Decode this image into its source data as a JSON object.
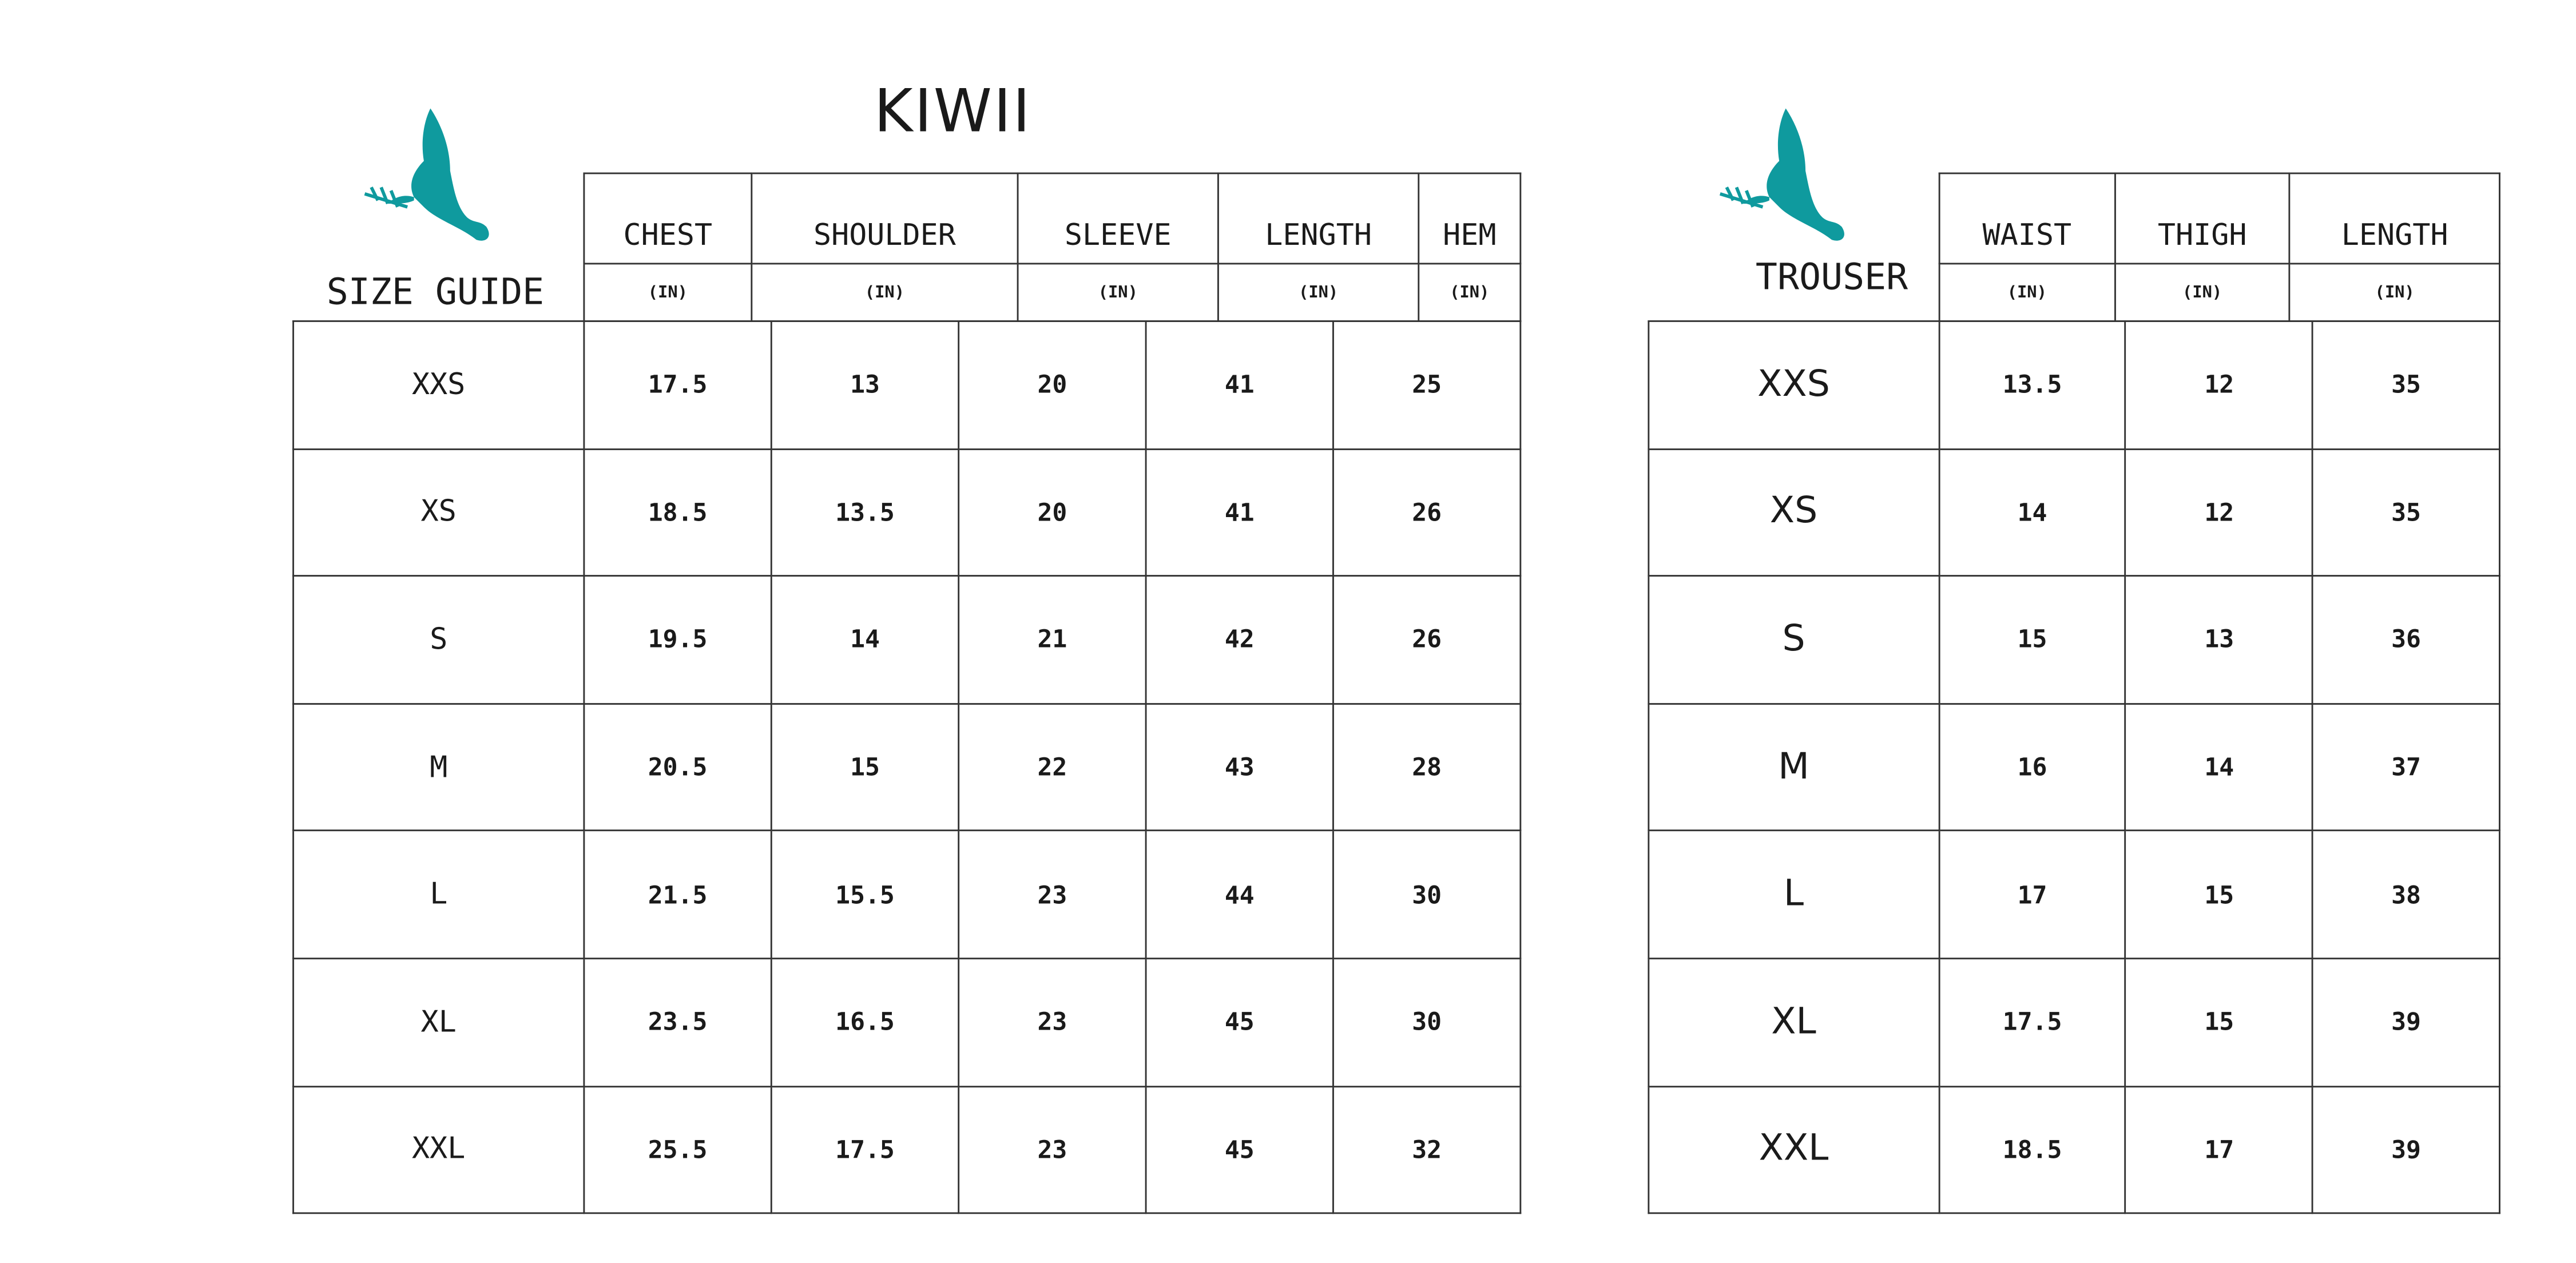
{
  "brand": {
    "title": "KIWII",
    "logo_icon": "dove-with-olive-branch-icon",
    "logo_color": "#0f9a9e"
  },
  "top_table": {
    "label": "SIZE GUIDE",
    "headers": [
      "CHEST",
      "SHOULDER",
      "SLEEVE",
      "LENGTH",
      "HEM"
    ],
    "units": [
      "(IN)",
      "(IN)",
      "(IN)",
      "(IN)",
      "(IN)"
    ],
    "rows": [
      {
        "size": "XXS",
        "values": [
          "17.5",
          "13",
          "20",
          "41",
          "25"
        ]
      },
      {
        "size": "XS",
        "values": [
          "18.5",
          "13.5",
          "20",
          "41",
          "26"
        ]
      },
      {
        "size": "S",
        "values": [
          "19.5",
          "14",
          "21",
          "42",
          "26"
        ]
      },
      {
        "size": "M",
        "values": [
          "20.5",
          "15",
          "22",
          "43",
          "28"
        ]
      },
      {
        "size": "L",
        "values": [
          "21.5",
          "15.5",
          "23",
          "44",
          "30"
        ]
      },
      {
        "size": "XL",
        "values": [
          "23.5",
          "16.5",
          "23",
          "45",
          "30"
        ]
      },
      {
        "size": "XXL",
        "values": [
          "25.5",
          "17.5",
          "23",
          "45",
          "32"
        ]
      }
    ]
  },
  "trouser_table": {
    "label": "TROUSER",
    "headers": [
      "WAIST",
      "THIGH",
      "LENGTH"
    ],
    "units": [
      "(IN)",
      "(IN)",
      "(IN)"
    ],
    "rows": [
      {
        "size": "XXS",
        "values": [
          "13.5",
          "12",
          "35"
        ]
      },
      {
        "size": "XS",
        "values": [
          "14",
          "12",
          "35"
        ]
      },
      {
        "size": "S",
        "values": [
          "15",
          "13",
          "36"
        ]
      },
      {
        "size": "M",
        "values": [
          "16",
          "14",
          "37"
        ]
      },
      {
        "size": "L",
        "values": [
          "17",
          "15",
          "38"
        ]
      },
      {
        "size": "XL",
        "values": [
          "17.5",
          "15",
          "39"
        ]
      },
      {
        "size": "XXL",
        "values": [
          "18.5",
          "17",
          "39"
        ]
      }
    ]
  }
}
